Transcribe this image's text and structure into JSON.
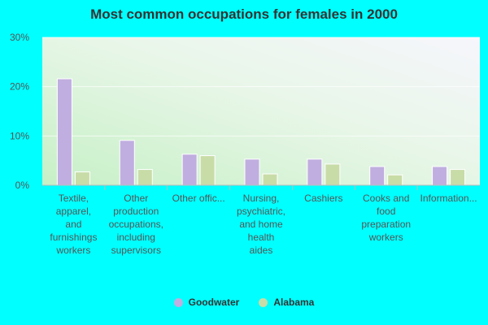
{
  "colors": {
    "background": "#00ffff",
    "goodwater": "#c0aee0",
    "alabama": "#c8dca8",
    "text": "#333333",
    "axis_text": "#555555"
  },
  "chart_data": {
    "type": "bar",
    "title": "Most common occupations for females in 2000",
    "xlabel": "",
    "ylabel": "",
    "ylim": [
      0,
      30
    ],
    "yticks": [
      0,
      10,
      20,
      30
    ],
    "ytick_labels": [
      "0%",
      "10%",
      "20%",
      "30%"
    ],
    "categories": [
      [
        "Textile,",
        "apparel,",
        "and",
        "furnishings",
        "workers"
      ],
      [
        "Other",
        "production",
        "occupations,",
        "including",
        "supervisors"
      ],
      [
        "Other offic..."
      ],
      [
        "Nursing,",
        "psychiatric,",
        "and home",
        "health",
        "aides"
      ],
      [
        "Cashiers"
      ],
      [
        "Cooks and",
        "food",
        "preparation",
        "workers"
      ],
      [
        "Information..."
      ]
    ],
    "series": [
      {
        "name": "Goodwater",
        "values": [
          21.6,
          9.1,
          6.3,
          5.3,
          5.3,
          3.8,
          3.8
        ]
      },
      {
        "name": "Alabama",
        "values": [
          2.7,
          3.2,
          6.0,
          2.3,
          4.3,
          2.1,
          3.2
        ]
      }
    ],
    "legend": "bottom"
  }
}
